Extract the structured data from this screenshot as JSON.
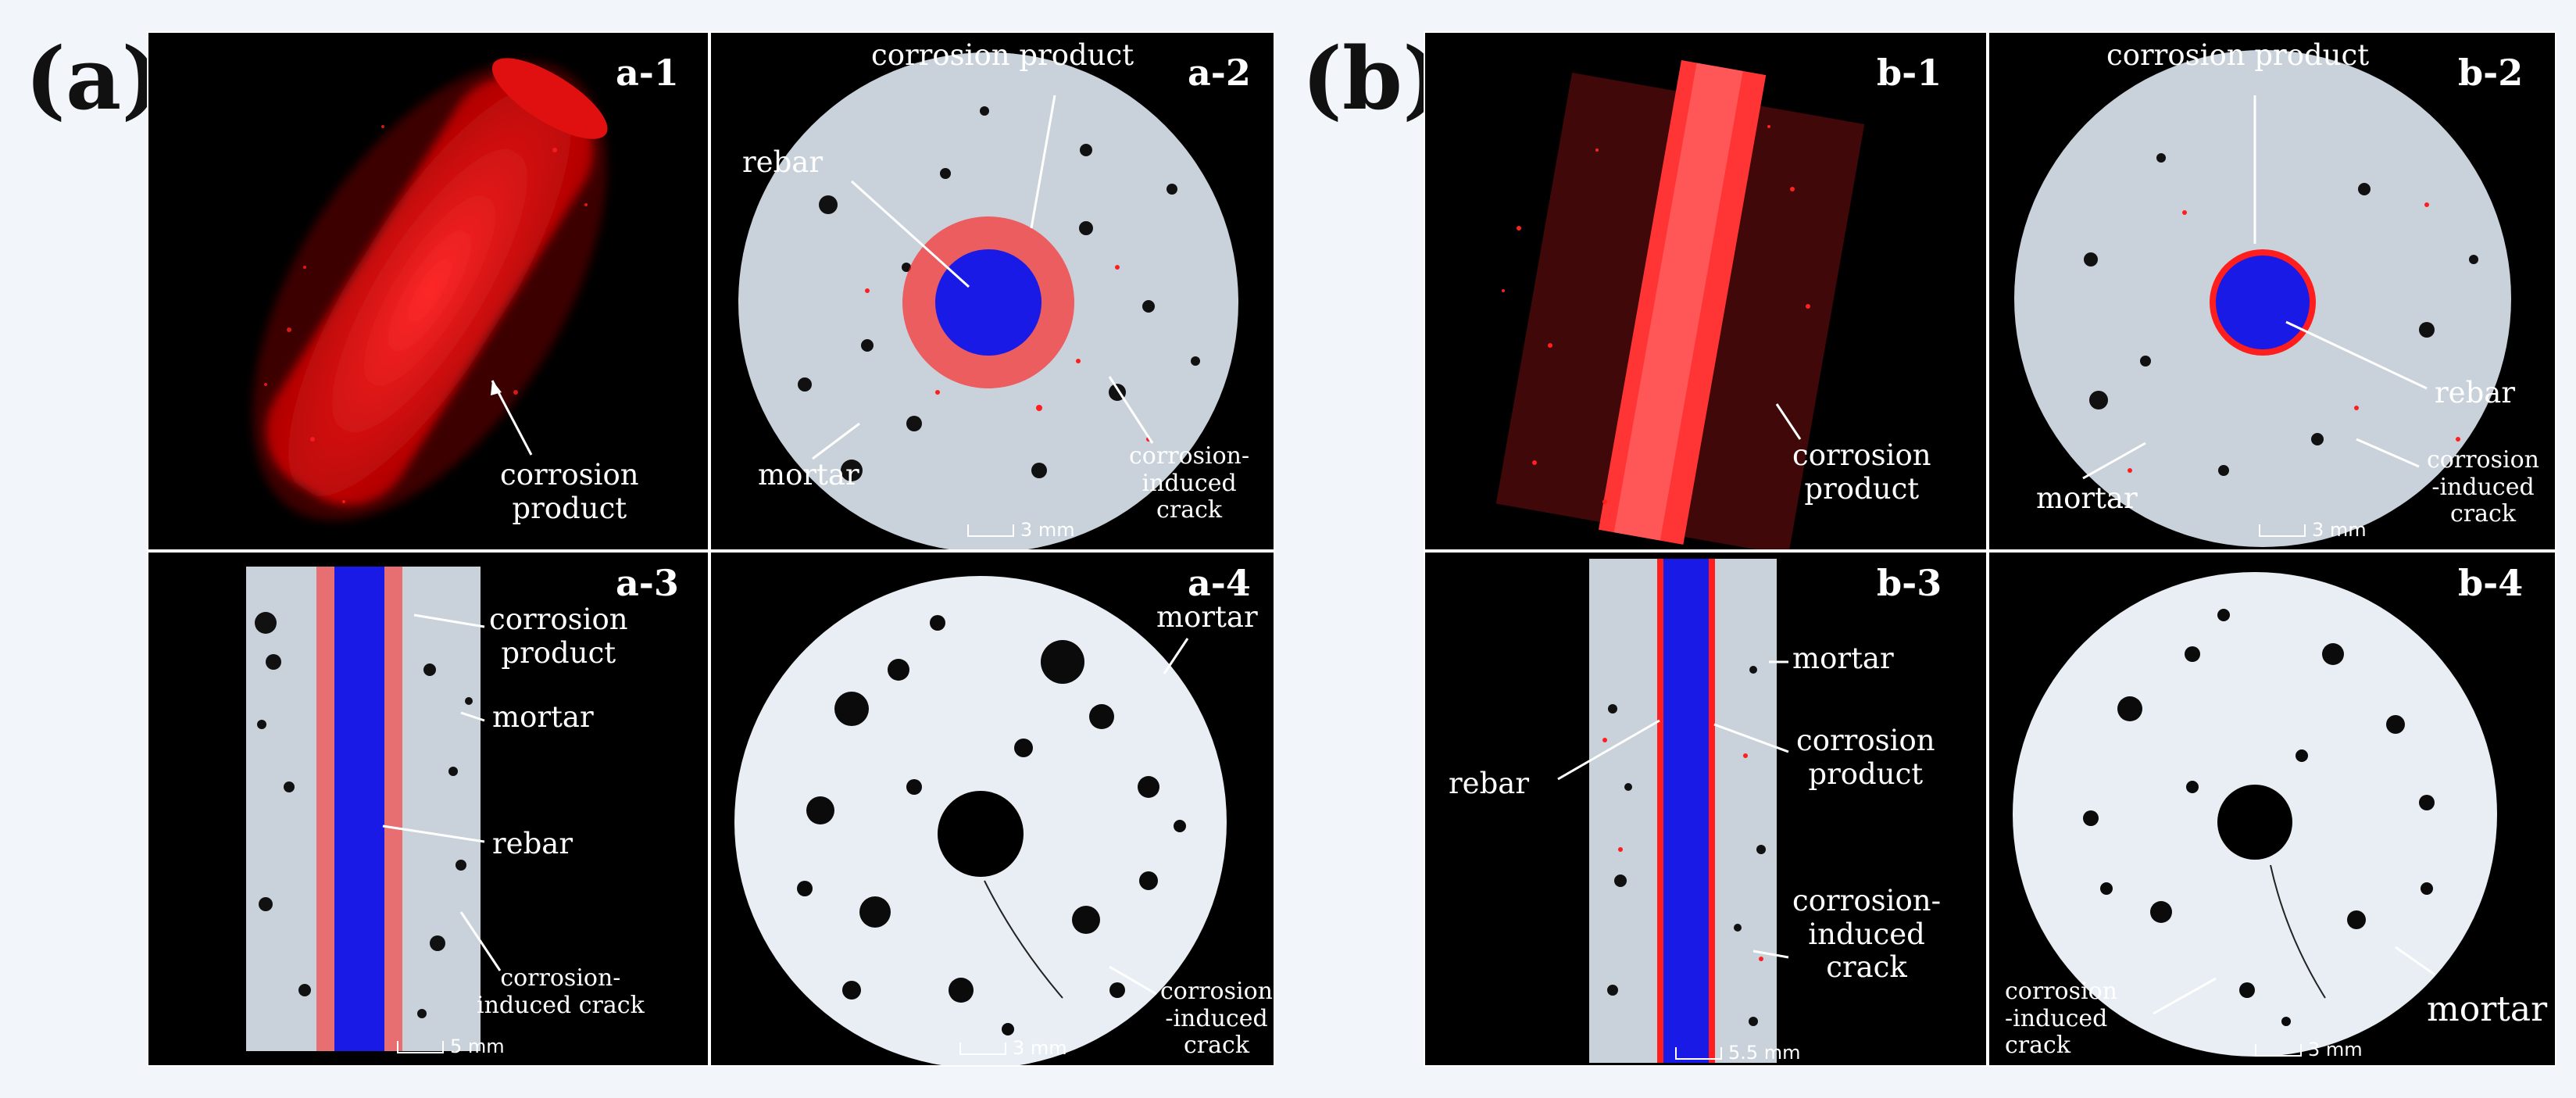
{
  "figure": {
    "group_a": {
      "label": "(a)"
    },
    "group_b": {
      "label": "(b)"
    },
    "panels": {
      "a1": {
        "label": "a-1",
        "annotations": {
          "corrosion_product_1": "corrosion",
          "corrosion_product_2": "product"
        }
      },
      "a2": {
        "label": "a-2",
        "annotations": {
          "corrosion_product": "corrosion product",
          "rebar": "rebar",
          "mortar": "mortar",
          "crack_1": "corrosion-",
          "crack_2": "induced",
          "crack_3": "crack"
        },
        "scale": "3 mm"
      },
      "a3": {
        "label": "a-3",
        "annotations": {
          "corrosion_product_1": "corrosion",
          "corrosion_product_2": "product",
          "mortar": "mortar",
          "rebar": "rebar",
          "crack_1": "corrosion-",
          "crack_2": "induced crack"
        },
        "scale": "5 mm"
      },
      "a4": {
        "label": "a-4",
        "annotations": {
          "mortar": "mortar",
          "crack_1": "corrosion",
          "crack_2": "-induced",
          "crack_3": "crack"
        },
        "scale": "3 mm"
      },
      "b1": {
        "label": "b-1",
        "annotations": {
          "corrosion_product_1": "corrosion",
          "corrosion_product_2": "product"
        }
      },
      "b2": {
        "label": "b-2",
        "annotations": {
          "corrosion_product": "corrosion product",
          "rebar": "rebar",
          "mortar": "mortar",
          "crack_1": "corrosion",
          "crack_2": "-induced",
          "crack_3": "crack"
        },
        "scale": "3 mm"
      },
      "b3": {
        "label": "b-3",
        "annotations": {
          "mortar": "mortar",
          "rebar": "rebar",
          "corrosion_product_1": "corrosion",
          "corrosion_product_2": "product",
          "crack_1": "corrosion-",
          "crack_2": "induced",
          "crack_3": "crack"
        },
        "scale": "5.5 mm"
      },
      "b4": {
        "label": "b-4",
        "annotations": {
          "mortar": "mortar",
          "crack_1": "corrosion",
          "crack_2": "-induced",
          "crack_3": "crack"
        },
        "scale": "3 mm"
      }
    }
  },
  "colors": {
    "background": "#f2f6fb",
    "panel": "#000000",
    "rebar": "#1a1ae6",
    "corrosion": "#ff1e1e",
    "mortar": "#c9d2da",
    "pore": "#0b0b0b"
  }
}
